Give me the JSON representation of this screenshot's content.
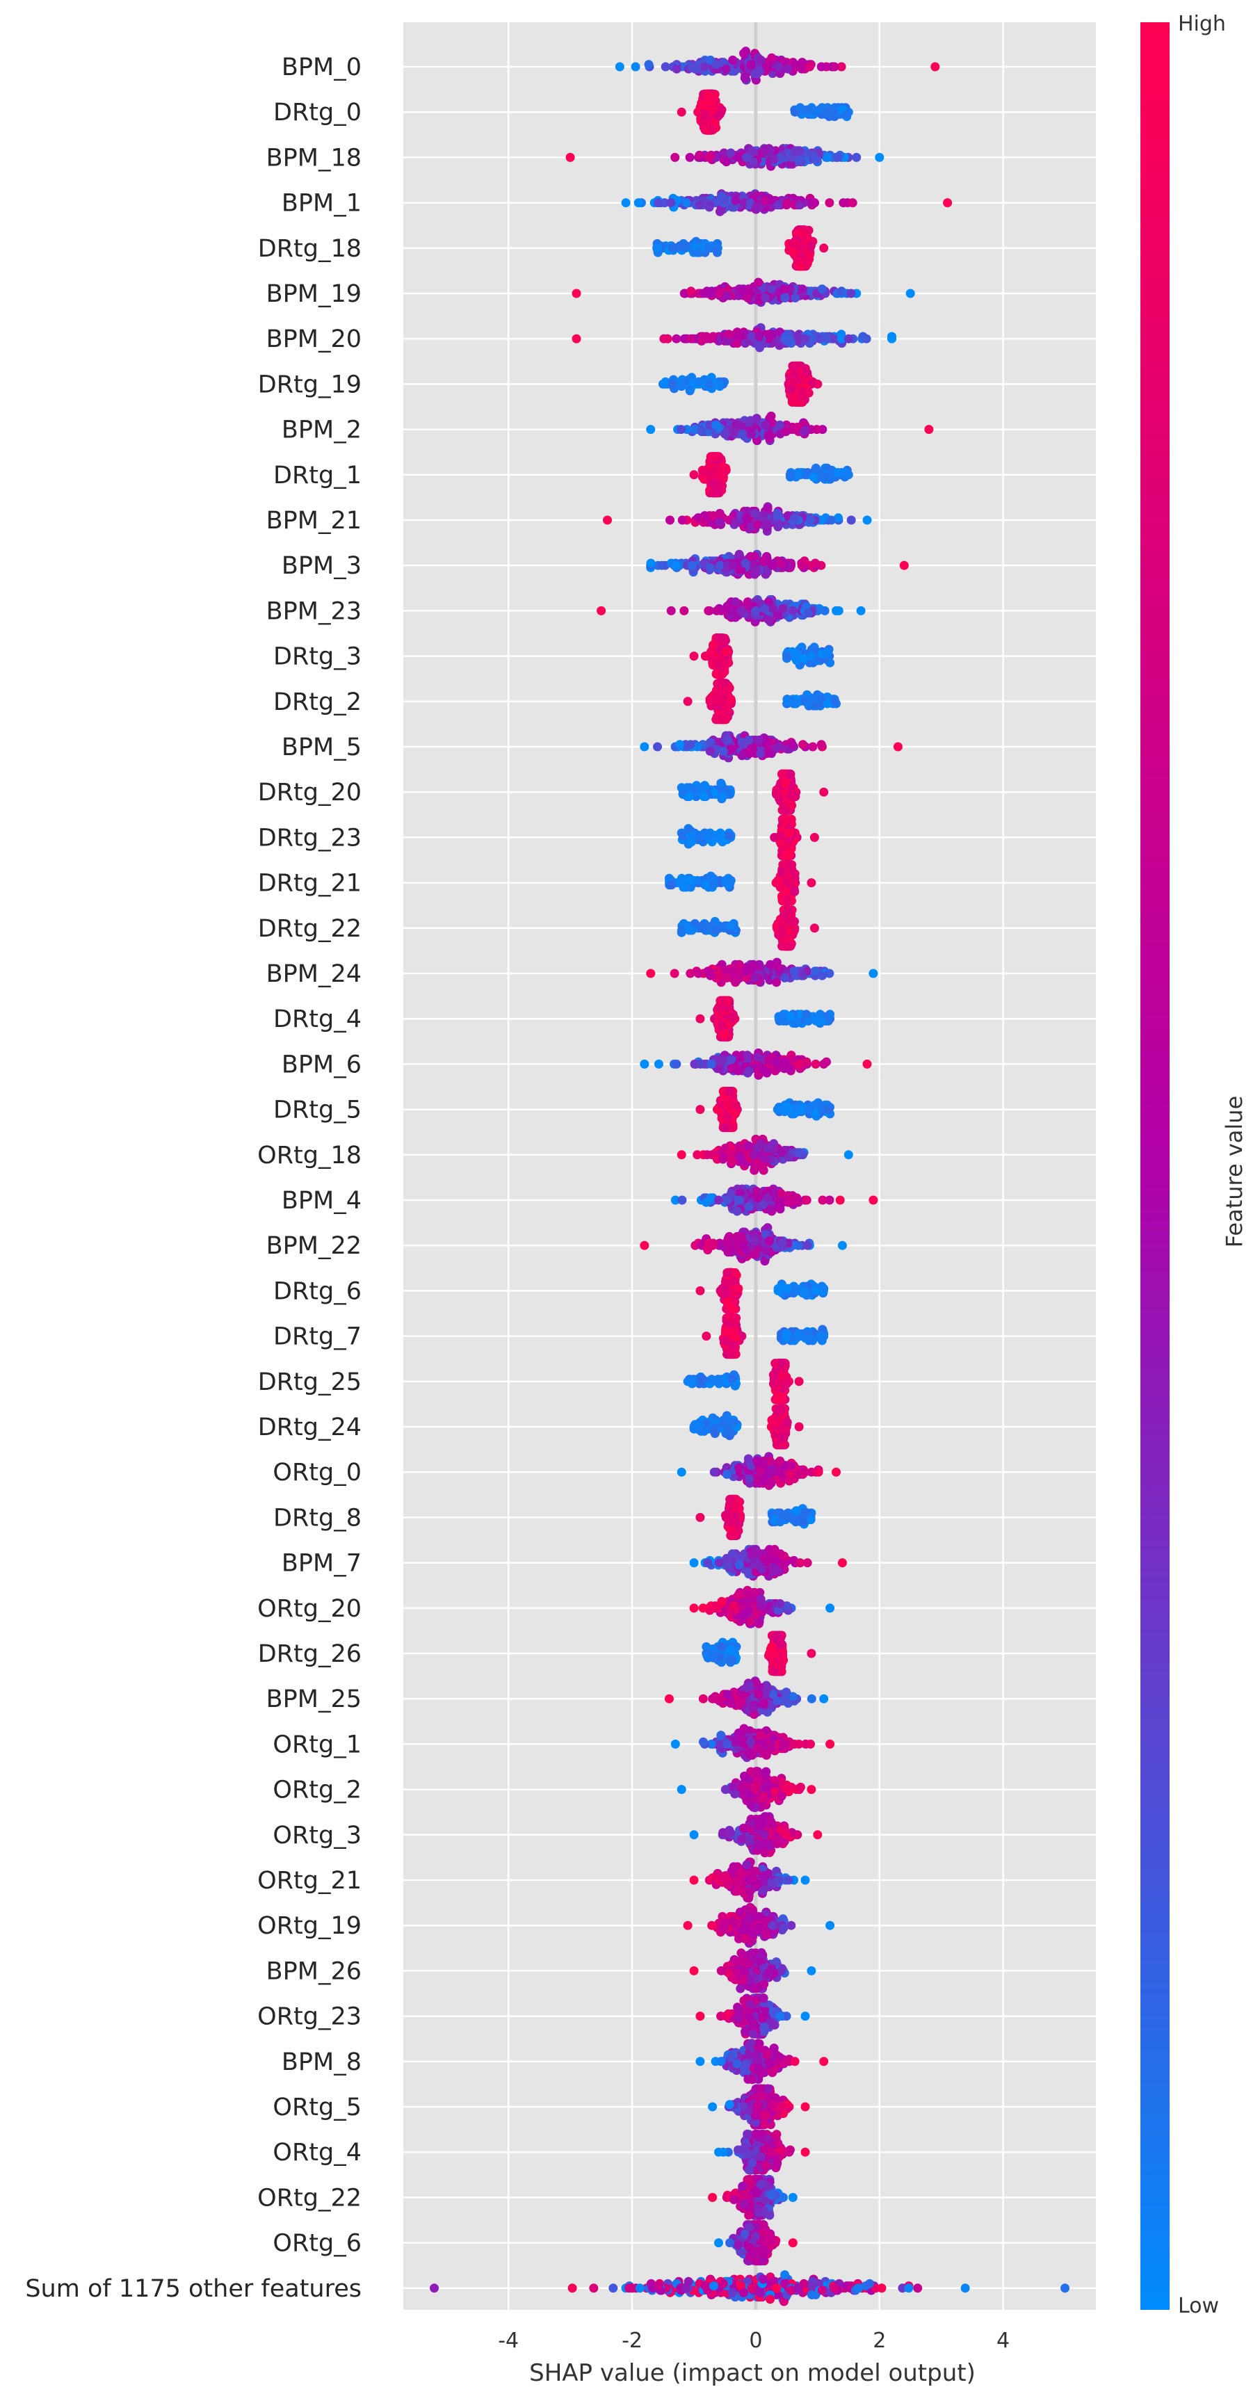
{
  "chart_data": {
    "type": "scatter",
    "subtype": "shap_beeswarm",
    "title": "",
    "xlabel": "SHAP value (impact on model output)",
    "xlim": [
      -5.7,
      5.5
    ],
    "xticks": [
      -4,
      -2,
      0,
      2,
      4
    ],
    "xtick_labels": [
      "-4",
      "-2",
      "0",
      "2",
      "4"
    ],
    "grid": true,
    "colorbar": {
      "label": "Feature value",
      "high_label": "High",
      "low_label": "Low",
      "low_color": "#008bfb",
      "mid_color": "#b000a8",
      "high_color": "#ff0052"
    },
    "features": [
      {
        "name": "BPM_0",
        "kind": "bpm_pos",
        "min": -2.2,
        "max": 2.9,
        "center": -0.1,
        "spread": 0.9
      },
      {
        "name": "DRtg_0",
        "kind": "split_neg",
        "min": -1.2,
        "max": 1.5,
        "center": -0.75,
        "spread": 0.2,
        "low_min": 0.6,
        "low_max": 1.5
      },
      {
        "name": "BPM_18",
        "kind": "bpm_neg",
        "min": -3.0,
        "max": 2.0,
        "center": 0.3,
        "spread": 0.9
      },
      {
        "name": "BPM_1",
        "kind": "bpm_pos",
        "min": -2.1,
        "max": 3.1,
        "center": -0.2,
        "spread": 0.9
      },
      {
        "name": "DRtg_18",
        "kind": "split_pos",
        "min": -1.6,
        "max": 1.1,
        "center": 0.75,
        "spread": 0.2,
        "low_min": -1.6,
        "low_max": -0.6
      },
      {
        "name": "BPM_19",
        "kind": "bpm_neg",
        "min": -2.9,
        "max": 2.5,
        "center": 0.2,
        "spread": 0.9
      },
      {
        "name": "BPM_20",
        "kind": "bpm_neg",
        "min": -2.9,
        "max": 2.2,
        "center": 0.2,
        "spread": 0.9
      },
      {
        "name": "DRtg_19",
        "kind": "split_pos",
        "min": -1.5,
        "max": 1.0,
        "center": 0.7,
        "spread": 0.2,
        "low_min": -1.5,
        "low_max": -0.5
      },
      {
        "name": "BPM_2",
        "kind": "bpm_pos",
        "min": -1.7,
        "max": 2.8,
        "center": -0.1,
        "spread": 0.8
      },
      {
        "name": "DRtg_1",
        "kind": "split_neg",
        "min": -1.0,
        "max": 1.5,
        "center": -0.65,
        "spread": 0.2,
        "low_min": 0.55,
        "low_max": 1.5
      },
      {
        "name": "BPM_21",
        "kind": "bpm_neg",
        "min": -2.4,
        "max": 1.8,
        "center": 0.1,
        "spread": 0.8
      },
      {
        "name": "BPM_3",
        "kind": "bpm_pos",
        "min": -1.7,
        "max": 2.4,
        "center": -0.2,
        "spread": 0.8
      },
      {
        "name": "BPM_23",
        "kind": "bpm_neg",
        "min": -2.5,
        "max": 1.7,
        "center": 0.2,
        "spread": 0.7
      },
      {
        "name": "DRtg_3",
        "kind": "split_neg",
        "min": -1.0,
        "max": 1.2,
        "center": -0.6,
        "spread": 0.18,
        "low_min": 0.5,
        "low_max": 1.2
      },
      {
        "name": "DRtg_2",
        "kind": "split_neg",
        "min": -1.1,
        "max": 1.3,
        "center": -0.55,
        "spread": 0.18,
        "low_min": 0.5,
        "low_max": 1.3
      },
      {
        "name": "BPM_5",
        "kind": "bpm_pos",
        "min": -1.8,
        "max": 2.3,
        "center": -0.2,
        "spread": 0.7
      },
      {
        "name": "DRtg_20",
        "kind": "split_pos",
        "min": -1.2,
        "max": 1.1,
        "center": 0.5,
        "spread": 0.15,
        "low_min": -1.2,
        "low_max": -0.4
      },
      {
        "name": "DRtg_23",
        "kind": "split_pos",
        "min": -1.2,
        "max": 0.95,
        "center": 0.5,
        "spread": 0.15,
        "low_min": -1.2,
        "low_max": -0.4
      },
      {
        "name": "DRtg_21",
        "kind": "split_pos",
        "min": -1.4,
        "max": 0.9,
        "center": 0.5,
        "spread": 0.15,
        "low_min": -1.4,
        "low_max": -0.4
      },
      {
        "name": "DRtg_22",
        "kind": "split_pos",
        "min": -1.2,
        "max": 0.95,
        "center": 0.5,
        "spread": 0.15,
        "low_min": -1.2,
        "low_max": -0.3
      },
      {
        "name": "BPM_24",
        "kind": "bpm_neg",
        "min": -1.7,
        "max": 1.9,
        "center": 0.0,
        "spread": 0.7
      },
      {
        "name": "DRtg_4",
        "kind": "split_neg",
        "min": -0.9,
        "max": 1.2,
        "center": -0.5,
        "spread": 0.15,
        "low_min": 0.35,
        "low_max": 1.2
      },
      {
        "name": "BPM_6",
        "kind": "bpm_pos",
        "min": -1.8,
        "max": 1.8,
        "center": 0.0,
        "spread": 0.7
      },
      {
        "name": "DRtg_5",
        "kind": "split_neg",
        "min": -0.9,
        "max": 1.2,
        "center": -0.45,
        "spread": 0.15,
        "low_min": 0.35,
        "low_max": 1.2
      },
      {
        "name": "ORtg_18",
        "kind": "bpm_neg",
        "min": -1.2,
        "max": 1.5,
        "center": 0.0,
        "spread": 0.5
      },
      {
        "name": "BPM_4",
        "kind": "bpm_pos",
        "min": -1.3,
        "max": 1.9,
        "center": 0.0,
        "spread": 0.6
      },
      {
        "name": "BPM_22",
        "kind": "bpm_neg",
        "min": -1.8,
        "max": 1.4,
        "center": 0.0,
        "spread": 0.6
      },
      {
        "name": "DRtg_6",
        "kind": "split_neg",
        "min": -0.9,
        "max": 1.1,
        "center": -0.4,
        "spread": 0.13,
        "low_min": 0.35,
        "low_max": 1.1
      },
      {
        "name": "DRtg_7",
        "kind": "split_neg",
        "min": -0.8,
        "max": 1.1,
        "center": -0.4,
        "spread": 0.13,
        "low_min": 0.4,
        "low_max": 1.1
      },
      {
        "name": "DRtg_25",
        "kind": "split_pos",
        "min": -1.1,
        "max": 0.7,
        "center": 0.4,
        "spread": 0.12,
        "low_min": -1.1,
        "low_max": -0.3
      },
      {
        "name": "DRtg_24",
        "kind": "split_pos",
        "min": -1.0,
        "max": 0.7,
        "center": 0.4,
        "spread": 0.12,
        "low_min": -1.0,
        "low_max": -0.3
      },
      {
        "name": "ORtg_0",
        "kind": "bpm_pos",
        "min": -1.2,
        "max": 1.3,
        "center": 0.2,
        "spread": 0.5
      },
      {
        "name": "DRtg_8",
        "kind": "split_neg",
        "min": -0.9,
        "max": 0.9,
        "center": -0.35,
        "spread": 0.12,
        "low_min": 0.25,
        "low_max": 0.9
      },
      {
        "name": "BPM_7",
        "kind": "bpm_pos",
        "min": -1.0,
        "max": 1.4,
        "center": 0.0,
        "spread": 0.45
      },
      {
        "name": "ORtg_20",
        "kind": "bpm_neg",
        "min": -1.0,
        "max": 1.2,
        "center": -0.1,
        "spread": 0.4
      },
      {
        "name": "DRtg_26",
        "kind": "split_pos",
        "min": -0.8,
        "max": 0.9,
        "center": 0.35,
        "spread": 0.12,
        "low_min": -0.8,
        "low_max": -0.3
      },
      {
        "name": "BPM_25",
        "kind": "bpm_neg",
        "min": -1.4,
        "max": 1.1,
        "center": 0.0,
        "spread": 0.45
      },
      {
        "name": "ORtg_1",
        "kind": "bpm_pos",
        "min": -1.3,
        "max": 1.2,
        "center": 0.0,
        "spread": 0.45
      },
      {
        "name": "ORtg_2",
        "kind": "bpm_pos",
        "min": -1.2,
        "max": 0.9,
        "center": 0.1,
        "spread": 0.35
      },
      {
        "name": "ORtg_3",
        "kind": "bpm_pos",
        "min": -1.0,
        "max": 1.0,
        "center": 0.1,
        "spread": 0.35
      },
      {
        "name": "ORtg_21",
        "kind": "bpm_neg",
        "min": -1.0,
        "max": 0.8,
        "center": -0.1,
        "spread": 0.35
      },
      {
        "name": "ORtg_19",
        "kind": "bpm_neg",
        "min": -1.1,
        "max": 1.2,
        "center": -0.05,
        "spread": 0.4
      },
      {
        "name": "BPM_26",
        "kind": "bpm_neg",
        "min": -1.0,
        "max": 0.9,
        "center": -0.05,
        "spread": 0.35
      },
      {
        "name": "ORtg_23",
        "kind": "bpm_neg",
        "min": -0.9,
        "max": 0.8,
        "center": 0.0,
        "spread": 0.3
      },
      {
        "name": "BPM_8",
        "kind": "bpm_pos",
        "min": -0.9,
        "max": 1.1,
        "center": 0.0,
        "spread": 0.35
      },
      {
        "name": "ORtg_5",
        "kind": "bpm_pos",
        "min": -0.7,
        "max": 0.8,
        "center": 0.1,
        "spread": 0.28
      },
      {
        "name": "ORtg_4",
        "kind": "bpm_pos",
        "min": -0.6,
        "max": 0.8,
        "center": 0.1,
        "spread": 0.28
      },
      {
        "name": "ORtg_22",
        "kind": "bpm_neg",
        "min": -0.7,
        "max": 0.6,
        "center": 0.0,
        "spread": 0.25
      },
      {
        "name": "ORtg_6",
        "kind": "bpm_pos",
        "min": -0.6,
        "max": 0.6,
        "center": 0.0,
        "spread": 0.22
      },
      {
        "name": "Sum of 1175 other features",
        "kind": "mixed",
        "min": -5.2,
        "max": 5.0,
        "center": 0.0,
        "spread": 1.4
      }
    ]
  }
}
